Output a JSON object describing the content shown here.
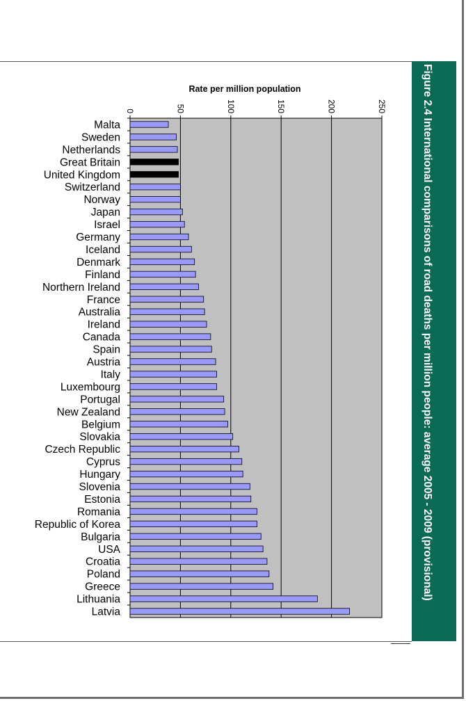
{
  "page": {
    "figure_title": "Figure 2.4 International comparisons of road deaths per million people: average 2005 - 2009 (provisional)"
  },
  "colors": {
    "bar": "#9999ff",
    "highlight_bar": "#000000",
    "plot_bg": "#c0c0c0",
    "title_band": "#0a6b55"
  },
  "chart_data": {
    "type": "bar",
    "orientation": "horizontal",
    "title": "Figure 2.4 International comparisons of road deaths per million people: average 2005 - 2009 (provisional)",
    "xlabel": "Rate per million population",
    "xlim": [
      0,
      250
    ],
    "xticks": [
      "0",
      "50",
      "100",
      "150",
      "200",
      "250"
    ],
    "grid": true,
    "legend": "none",
    "highlighted": [
      "Great Britain",
      "United Kingdom"
    ],
    "categories": [
      "Malta",
      "Sweden",
      "Netherlands",
      "Great Britain",
      "United Kingdom",
      "Switzerland",
      "Norway",
      "Japan",
      "Israel",
      "Germany",
      "Iceland",
      "Denmark",
      "Finland",
      "Northern Ireland",
      "France",
      "Australia",
      "Ireland",
      "Canada",
      "Spain",
      "Austria",
      "Italy",
      "Luxembourg",
      "Portugal",
      "New Zealand",
      "Belgium",
      "Slovakia",
      "Czech Republic",
      "Cyprus",
      "Hungary",
      "Slovenia",
      "Estonia",
      "Romania",
      "Republic of Korea",
      "Bulgaria",
      "USA",
      "Croatia",
      "Poland",
      "Greece",
      "Lithuania",
      "Latvia"
    ],
    "values": [
      38,
      46,
      47,
      48,
      48,
      50,
      50,
      52,
      54,
      58,
      61,
      64,
      65,
      68,
      73,
      74,
      76,
      80,
      81,
      85,
      86,
      86,
      93,
      94,
      97,
      102,
      108,
      111,
      112,
      119,
      120,
      126,
      126,
      130,
      132,
      136,
      138,
      142,
      186,
      218
    ]
  }
}
